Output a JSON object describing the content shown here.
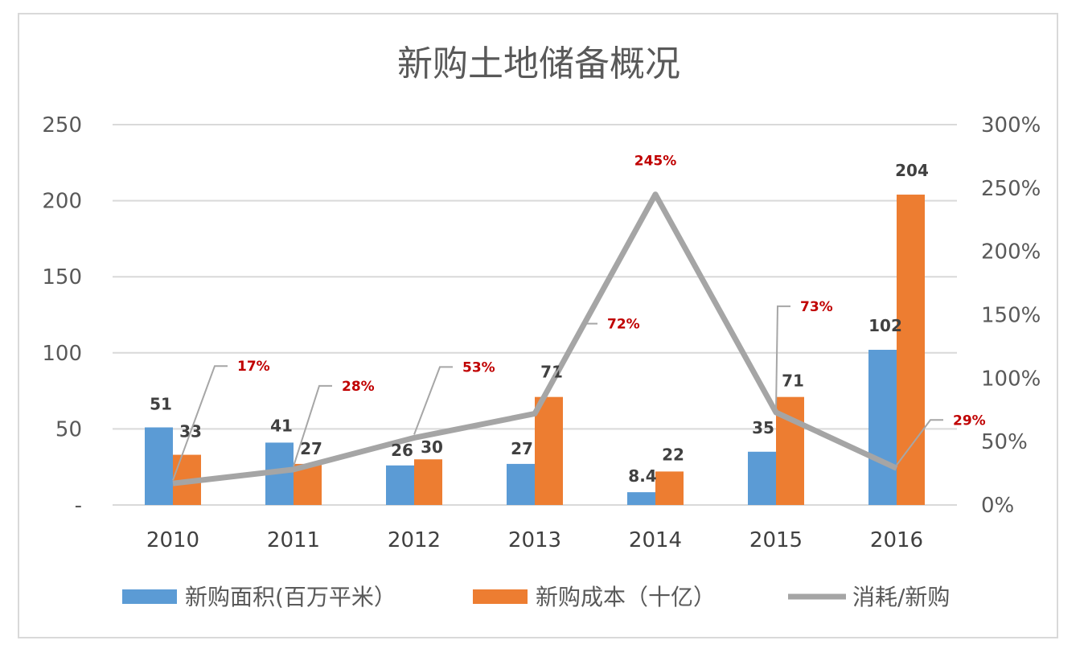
{
  "chart_data": {
    "type": "bar",
    "title": "新购土地储备概况",
    "categories": [
      "2010",
      "2011",
      "2012",
      "2013",
      "2014",
      "2015",
      "2016"
    ],
    "ylim": [
      0,
      250
    ],
    "yticks": [
      "-",
      "50",
      "100",
      "150",
      "200",
      "250"
    ],
    "y2lim": [
      0,
      3.0
    ],
    "y2ticks": [
      "0%",
      "50%",
      "100%",
      "150%",
      "200%",
      "250%",
      "300%"
    ],
    "grid": true,
    "legend_position": "bottom",
    "series": [
      {
        "name": "新购面积(百万平米）",
        "type": "bar",
        "axis": "left",
        "color": "#5b9bd5",
        "values": [
          51,
          41,
          26,
          27,
          8.4,
          35,
          102
        ],
        "labels": [
          "51",
          "41",
          "26",
          "27",
          "8.4",
          "35",
          "102"
        ]
      },
      {
        "name": "新购成本（十亿）",
        "type": "bar",
        "axis": "left",
        "color": "#ed7d31",
        "values": [
          33,
          27,
          30,
          71,
          22,
          71,
          204
        ],
        "labels": [
          "33",
          "27",
          "30",
          "71",
          "22",
          "71",
          "204"
        ]
      },
      {
        "name": "消耗/新购",
        "type": "line",
        "axis": "right",
        "color": "#a5a5a5",
        "values": [
          0.17,
          0.28,
          0.53,
          0.72,
          2.45,
          0.73,
          0.29
        ],
        "labels": [
          "17%",
          "28%",
          "53%",
          "72%",
          "245%",
          "73%",
          "29%"
        ]
      }
    ]
  }
}
